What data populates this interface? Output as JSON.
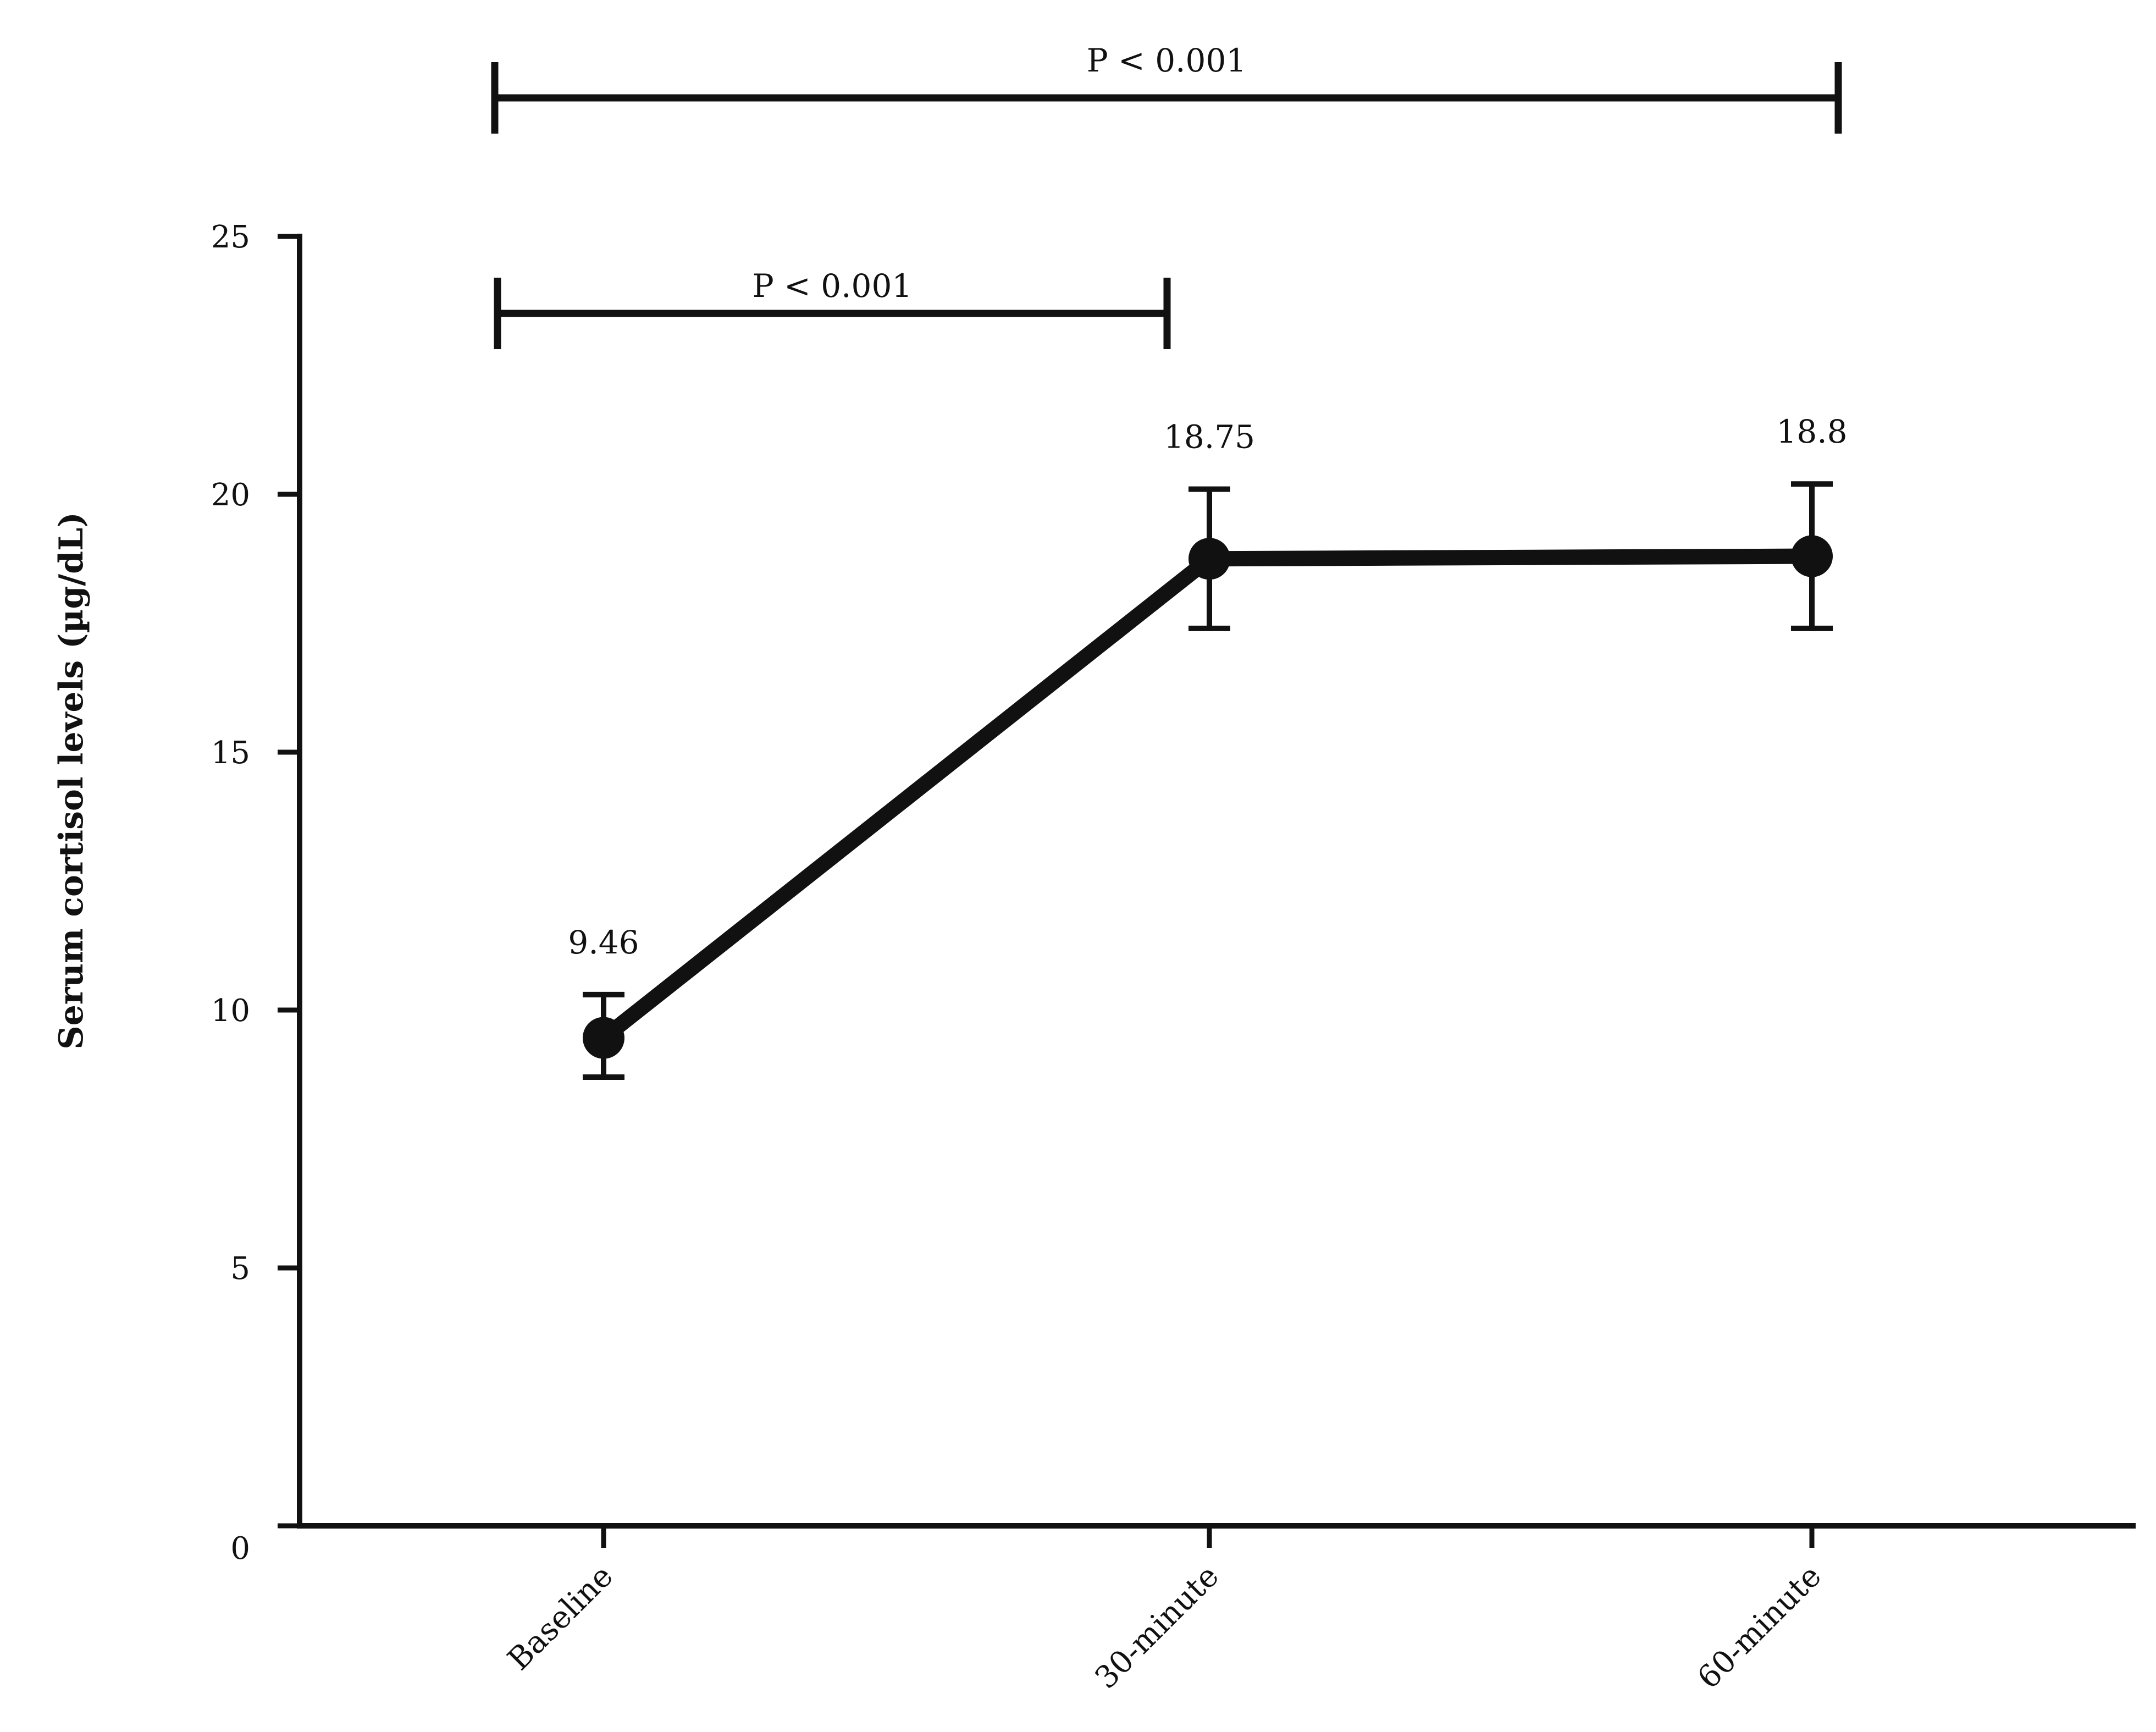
{
  "chart_data": {
    "type": "line",
    "title": "",
    "xlabel": "",
    "ylabel": "Serum cortisol levels (µg/dL)",
    "categories": [
      "Baseline",
      "30-minute",
      "60-minute"
    ],
    "ylim": [
      0,
      25
    ],
    "yticks": [
      0,
      5,
      10,
      15,
      20,
      25
    ],
    "ytick_labels": [
      "0",
      "5",
      "10",
      "15",
      "20",
      "25"
    ],
    "grid": false,
    "legend": "none",
    "series": [
      {
        "values": [
          9.46,
          18.75,
          18.8
        ],
        "error_low": [
          8.7,
          17.4,
          17.4
        ],
        "error_high": [
          10.3,
          20.1,
          20.2
        ],
        "data_labels": [
          "9.46",
          "18.75",
          "18.8"
        ]
      }
    ],
    "significance": [
      {
        "from": "Baseline",
        "to": "30-minute",
        "label": "P < 0.001"
      },
      {
        "from": "Baseline",
        "to": "60-minute",
        "label": "P < 0.001"
      }
    ],
    "colors": {
      "line": "#111111",
      "background": "#ffffff"
    }
  }
}
